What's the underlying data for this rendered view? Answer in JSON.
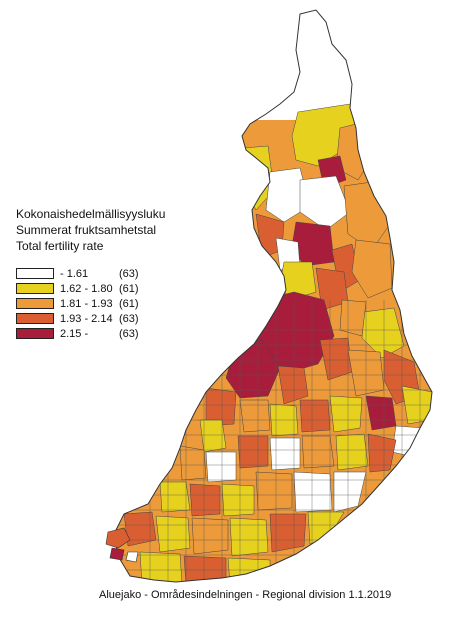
{
  "title_lines": [
    "Kokonaishedelmällisyysluku",
    "Summerat fruktsamhetstal",
    "Total fertility rate"
  ],
  "legend": [
    {
      "label": "- 1.61",
      "count": "(63)",
      "color": "#ffffff"
    },
    {
      "label": "1.62 - 1.80",
      "count": "(61)",
      "color": "#e6d21e"
    },
    {
      "label": "1.81 - 1.93",
      "count": "(61)",
      "color": "#ed9a3a"
    },
    {
      "label": "1.93 - 2.14",
      "count": "(63)",
      "color": "#d95f33"
    },
    {
      "label": "2.15 -",
      "count": "(63)",
      "color": "#a81c3c"
    }
  ],
  "footer": "Aluejako - Områdesindelningen - Regional division 1.1.2019"
}
